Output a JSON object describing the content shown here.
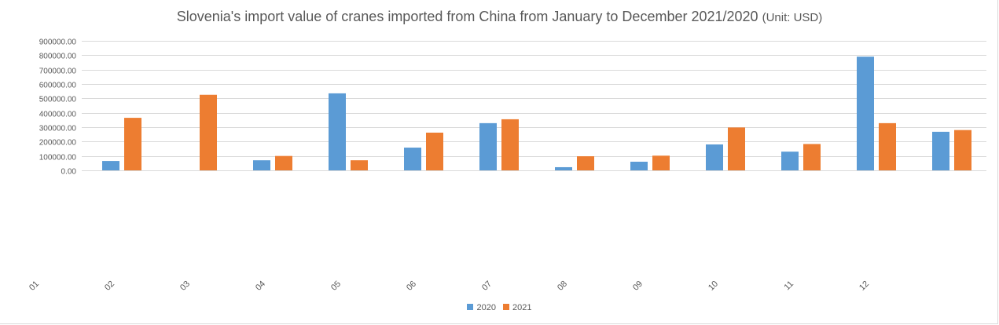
{
  "chart_data": {
    "type": "bar",
    "title": "Slovenia's import value of cranes imported from China from January to December 2021/2020",
    "title_unit": "(Unit: USD)",
    "categories": [
      "01",
      "02",
      "03",
      "04",
      "05",
      "06",
      "07",
      "08",
      "09",
      "10",
      "11",
      "12"
    ],
    "series": [
      {
        "name": "2020",
        "color": "#5b9bd5",
        "values": [
          65000,
          0,
          70000,
          535000,
          158000,
          328000,
          22000,
          60000,
          180000,
          130000,
          790000,
          268000
        ]
      },
      {
        "name": "2021",
        "color": "#ed7d31",
        "values": [
          365000,
          525000,
          100000,
          70000,
          262000,
          355000,
          98000,
          102000,
          298000,
          183000,
          328000,
          280000
        ]
      }
    ],
    "y_ticks": [
      "0.00",
      "100000.00",
      "200000.00",
      "300000.00",
      "400000.00",
      "500000.00",
      "600000.00",
      "700000.00",
      "800000.00",
      "900000.00"
    ],
    "ylim": [
      0,
      900000
    ],
    "grid": true,
    "legend_position": "bottom"
  }
}
